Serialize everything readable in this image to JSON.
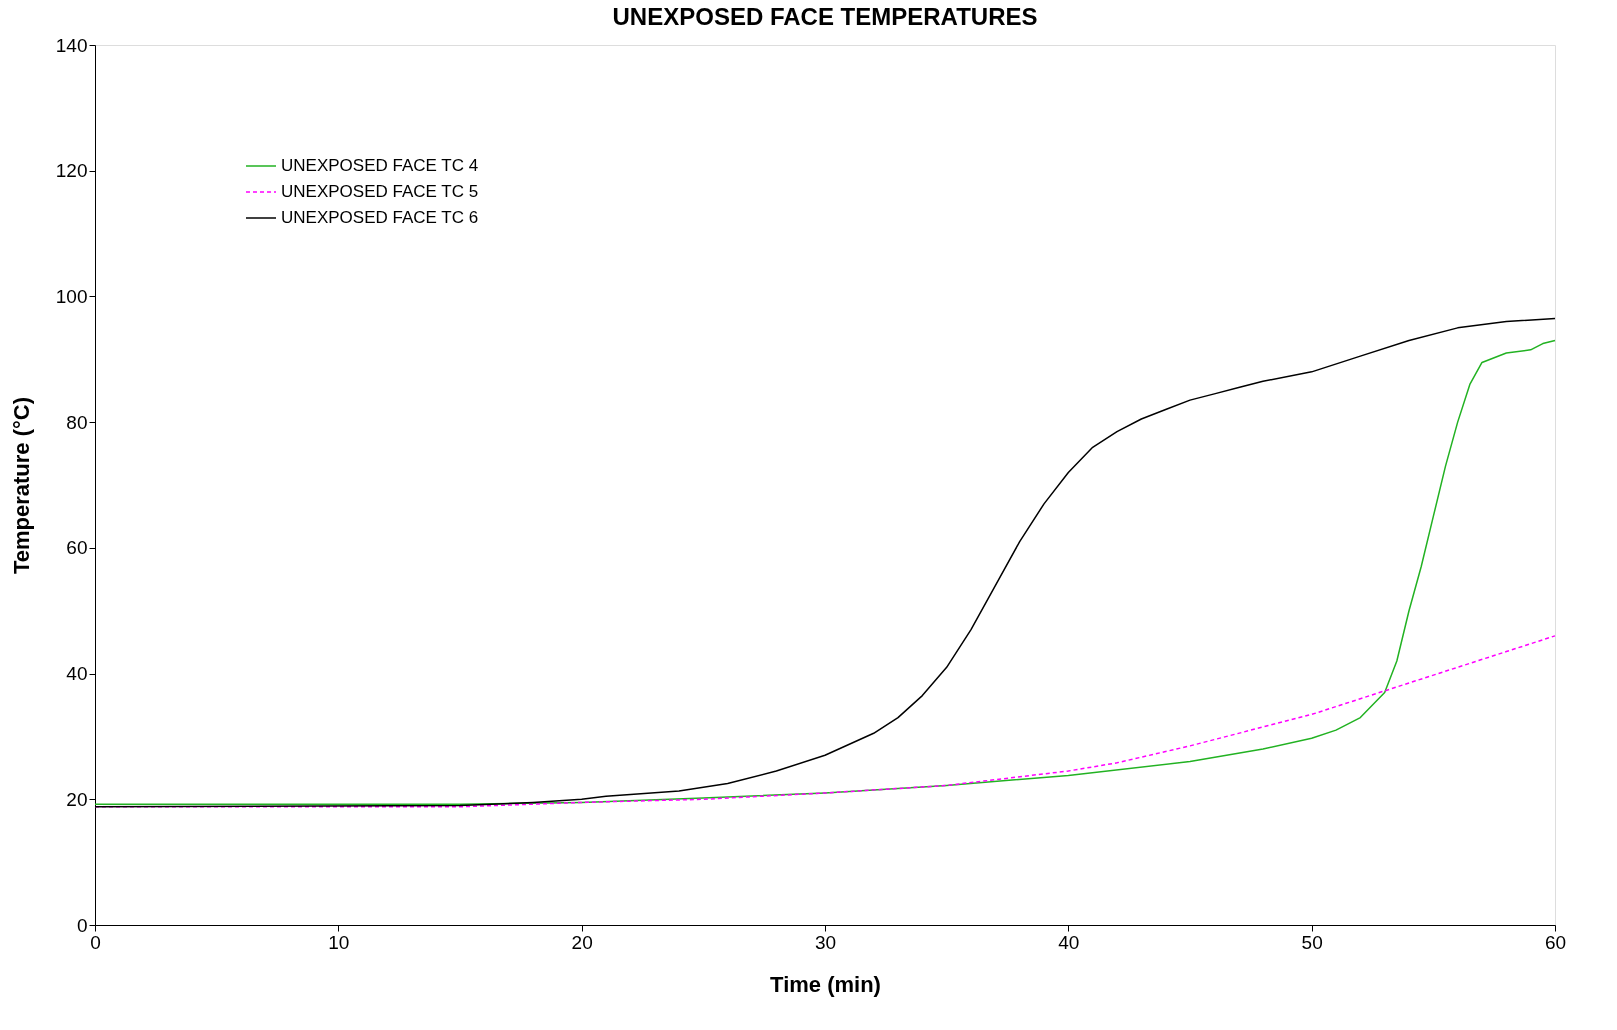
{
  "chart_data": {
    "type": "line",
    "title": "UNEXPOSED FACE TEMPERATURES",
    "xlabel": "Time (min)",
    "ylabel": "Temperature (°C)",
    "xlim": [
      0,
      60
    ],
    "xticks": [
      0,
      10,
      20,
      30,
      40,
      50,
      60
    ],
    "ylim": [
      0,
      140
    ],
    "yticks": [
      0,
      20,
      40,
      60,
      80,
      100,
      120,
      140
    ],
    "grid": false,
    "legend": "top left",
    "marker": "none",
    "series": [
      {
        "name": "UNEXPOSED FACE TC 4",
        "color": "#22b222",
        "line_style": "solid",
        "x": [
          0,
          15,
          20,
          25,
          30,
          35,
          40,
          45,
          48,
          50,
          51,
          52,
          53,
          53.5,
          54,
          54.5,
          55,
          55.5,
          56,
          56.5,
          57,
          58,
          59,
          59.5,
          60
        ],
        "values": [
          19.2,
          19.2,
          19.5,
          20.2,
          21,
          22.2,
          23.8,
          26,
          28,
          29.7,
          31,
          33,
          37,
          42,
          50,
          57,
          65,
          73,
          80,
          86,
          89.5,
          91,
          91.5,
          92.5,
          93
        ]
      },
      {
        "name": "UNEXPOSED FACE TC 5",
        "color": "#ff00ff",
        "line_style": "dashed",
        "x": [
          0,
          15,
          20,
          25,
          30,
          35,
          40,
          42,
          45,
          48,
          50,
          52,
          54,
          56,
          58,
          60
        ],
        "values": [
          18.8,
          18.8,
          19.5,
          20,
          21,
          22.2,
          24.5,
          25.8,
          28.5,
          31.5,
          33.5,
          36,
          38.5,
          41,
          43.5,
          46
        ]
      },
      {
        "name": "UNEXPOSED FACE TC 6",
        "color": "#000000",
        "line_style": "solid",
        "x": [
          0,
          15,
          18,
          20,
          21,
          24,
          26,
          28,
          30,
          32,
          33,
          34,
          35,
          36,
          37,
          38,
          39,
          40,
          41,
          42,
          43,
          44,
          45,
          46,
          47,
          48,
          50,
          52,
          54,
          56,
          58,
          60
        ],
        "values": [
          18.8,
          19,
          19.5,
          20,
          20.5,
          21.3,
          22.5,
          24.5,
          27,
          30.5,
          33,
          36.5,
          41,
          47,
          54,
          61,
          67,
          72,
          76,
          78.5,
          80.5,
          82,
          83.5,
          84.5,
          85.5,
          86.5,
          88,
          90.5,
          93,
          95,
          96,
          96.5
        ]
      }
    ]
  }
}
